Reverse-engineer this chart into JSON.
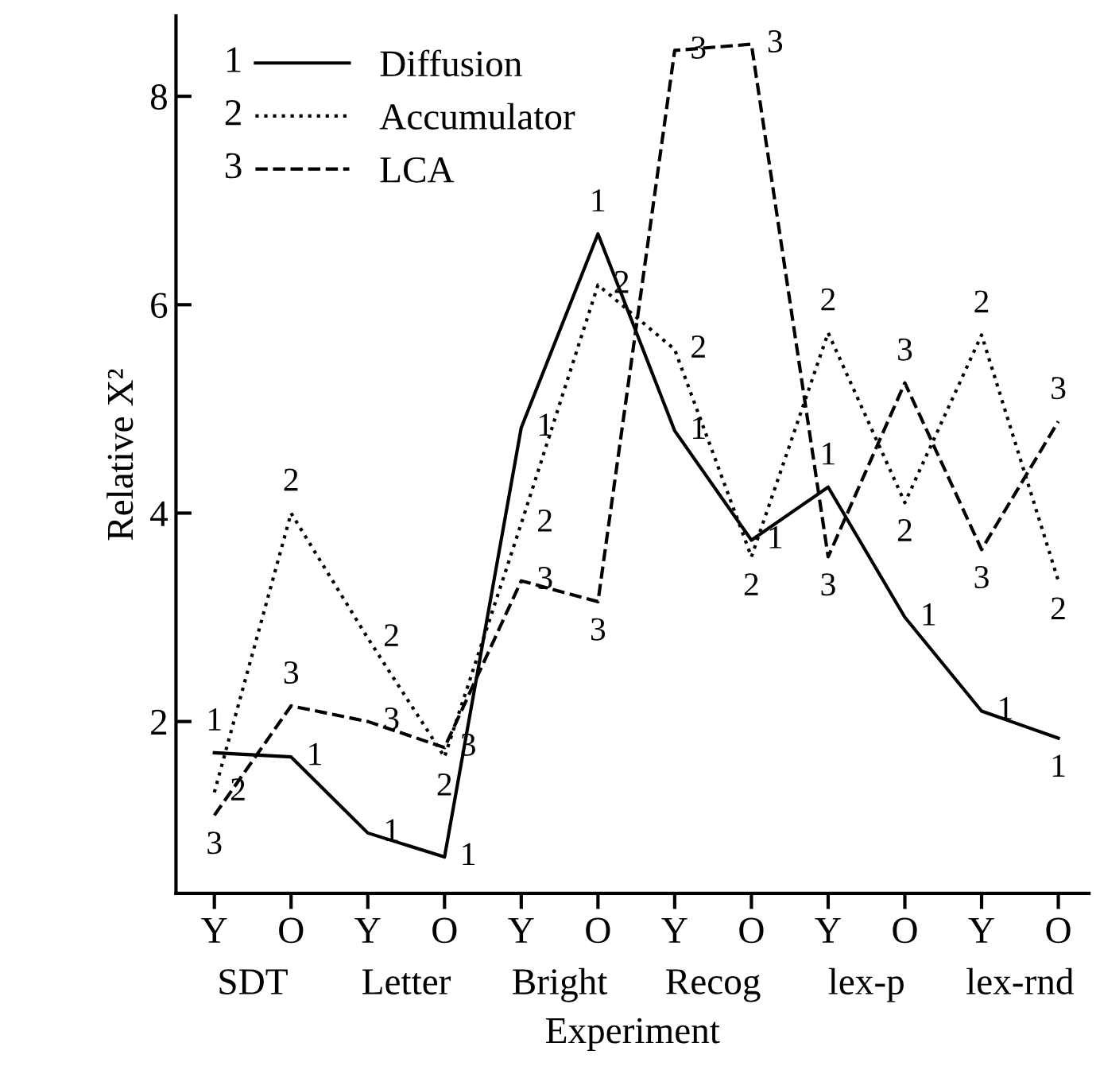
{
  "chart_data": {
    "type": "line",
    "xlabel": "Experiment",
    "ylabel": "Relative X²",
    "categories": [
      "Y",
      "O",
      "Y",
      "O",
      "Y",
      "O",
      "Y",
      "O",
      "Y",
      "O",
      "Y",
      "O"
    ],
    "annotations": [
      "SDT",
      "Letter",
      "Bright",
      "Recog",
      "lex-p",
      "lex-rnd",
      "1",
      "2",
      "3",
      "1",
      "1",
      "1",
      "1",
      "1",
      "1",
      "1",
      "1",
      "1",
      "1",
      "1",
      "1",
      "2",
      "2",
      "2",
      "2",
      "2",
      "2",
      "2",
      "2",
      "2",
      "2",
      "2",
      "2",
      "3",
      "3",
      "3",
      "3",
      "3",
      "3",
      "3",
      "3",
      "3",
      "3",
      "3",
      "3"
    ],
    "series": [
      {
        "name": "Diffusion",
        "color": "#000000",
        "line_style": "solid",
        "values": [
          1.7,
          1.66,
          0.93,
          0.7,
          4.82,
          6.68,
          4.79,
          3.74,
          4.25,
          3.0,
          2.1,
          1.84
        ]
      },
      {
        "name": "Accumulator",
        "color": "#000000",
        "line_style": "dotted",
        "values": [
          1.32,
          4.0,
          2.8,
          1.66,
          3.9,
          6.19,
          5.57,
          3.58,
          5.73,
          4.1,
          5.71,
          3.35
        ]
      },
      {
        "name": "LCA",
        "color": "#000000",
        "line_style": "dashed",
        "values": [
          1.1,
          2.15,
          2.0,
          1.75,
          3.35,
          3.15,
          8.44,
          8.5,
          3.58,
          5.25,
          3.65,
          4.88
        ]
      }
    ],
    "ylim": [
      0.35,
      8.77
    ],
    "yticks": [
      2,
      4,
      6,
      8
    ],
    "grid": false,
    "legend": "top left"
  }
}
